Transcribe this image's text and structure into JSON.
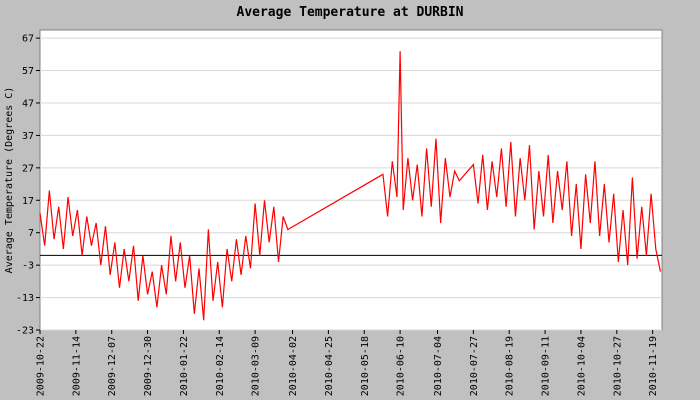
{
  "chart_data": {
    "type": "line",
    "title": "Average Temperature at DURBIN",
    "y_label": "Average Temperature (Degrees C)",
    "x": [
      "2009-10-22",
      "2009-10-25",
      "2009-10-28",
      "2009-10-31",
      "2009-11-03",
      "2009-11-06",
      "2009-11-09",
      "2009-11-12",
      "2009-11-15",
      "2009-11-18",
      "2009-11-21",
      "2009-11-24",
      "2009-11-27",
      "2009-11-30",
      "2009-12-03",
      "2009-12-06",
      "2009-12-09",
      "2009-12-12",
      "2009-12-15",
      "2009-12-18",
      "2009-12-21",
      "2009-12-24",
      "2009-12-27",
      "2009-12-30",
      "2010-01-02",
      "2010-01-05",
      "2010-01-08",
      "2010-01-11",
      "2010-01-14",
      "2010-01-17",
      "2010-01-20",
      "2010-01-23",
      "2010-01-26",
      "2010-01-29",
      "2010-02-01",
      "2010-02-04",
      "2010-02-07",
      "2010-02-10",
      "2010-02-13",
      "2010-02-16",
      "2010-02-19",
      "2010-02-22",
      "2010-02-25",
      "2010-02-28",
      "2010-03-03",
      "2010-03-06",
      "2010-03-09",
      "2010-03-12",
      "2010-03-15",
      "2010-03-18",
      "2010-03-21",
      "2010-03-24",
      "2010-03-27",
      "2010-03-30",
      "2010-05-30",
      "2010-06-02",
      "2010-06-05",
      "2010-06-08",
      "2010-06-10",
      "2010-06-12",
      "2010-06-15",
      "2010-06-18",
      "2010-06-21",
      "2010-06-24",
      "2010-06-27",
      "2010-06-30",
      "2010-07-03",
      "2010-07-06",
      "2010-07-09",
      "2010-07-12",
      "2010-07-15",
      "2010-07-18",
      "2010-07-27",
      "2010-07-30",
      "2010-08-02",
      "2010-08-05",
      "2010-08-08",
      "2010-08-11",
      "2010-08-14",
      "2010-08-17",
      "2010-08-20",
      "2010-08-23",
      "2010-08-26",
      "2010-08-29",
      "2010-09-01",
      "2010-09-04",
      "2010-09-07",
      "2010-09-10",
      "2010-09-13",
      "2010-09-16",
      "2010-09-19",
      "2010-09-22",
      "2010-09-25",
      "2010-09-28",
      "2010-10-01",
      "2010-10-04",
      "2010-10-07",
      "2010-10-10",
      "2010-10-13",
      "2010-10-16",
      "2010-10-19",
      "2010-10-22",
      "2010-10-25",
      "2010-10-28",
      "2010-10-31",
      "2010-11-03",
      "2010-11-06",
      "2010-11-09",
      "2010-11-12",
      "2010-11-15",
      "2010-11-18",
      "2010-11-21",
      "2010-11-24"
    ],
    "series": [
      {
        "color": "#ff0000",
        "values": [
          13,
          3,
          20,
          5,
          15,
          2,
          18,
          6,
          14,
          0,
          12,
          3,
          10,
          -3,
          9,
          -6,
          4,
          -10,
          2,
          -8,
          3,
          -14,
          0,
          -12,
          -5,
          -16,
          -3,
          -12,
          6,
          -8,
          4,
          -10,
          0,
          -18,
          -4,
          -20,
          8,
          -14,
          -2,
          -16,
          2,
          -8,
          5,
          -6,
          6,
          -4,
          16,
          0,
          17,
          4,
          15,
          -2,
          12,
          8,
          25,
          12,
          29,
          18,
          63,
          14,
          30,
          17,
          28,
          12,
          33,
          15,
          36,
          10,
          30,
          18,
          26,
          23,
          28,
          16,
          31,
          14,
          29,
          18,
          33,
          15,
          35,
          12,
          30,
          17,
          34,
          8,
          26,
          12,
          31,
          10,
          26,
          14,
          29,
          6,
          22,
          2,
          25,
          10,
          29,
          6,
          22,
          4,
          19,
          -2,
          14,
          -3,
          24,
          -1,
          15,
          0,
          19,
          2,
          -5
        ]
      }
    ],
    "xlim": [
      "2009-10-22",
      "2010-11-25"
    ],
    "xticks": [
      "2009-10-22",
      "2009-11-14",
      "2009-12-07",
      "2009-12-30",
      "2010-01-22",
      "2010-02-14",
      "2010-03-09",
      "2010-04-02",
      "2010-04-25",
      "2010-05-18",
      "2010-06-10",
      "2010-07-04",
      "2010-07-27",
      "2010-08-19",
      "2010-09-11",
      "2010-10-04",
      "2010-10-27",
      "2010-11-19"
    ],
    "ylim": [
      -23,
      69.5
    ],
    "yticks": [
      -23,
      -13,
      -3,
      7,
      17,
      27,
      37,
      47,
      57,
      67
    ],
    "grid": true
  }
}
